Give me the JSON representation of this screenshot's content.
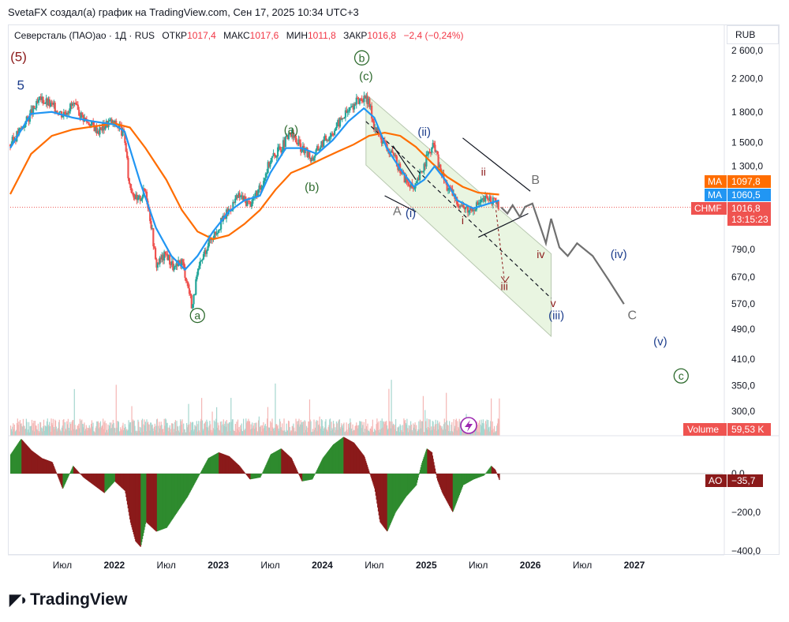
{
  "caption": "SvetaFX создал(а) график на TradingView.com, Сен 17, 2025 10:34 UTC+3",
  "legend": {
    "symbol": "Северсталь (ПАО)ао · 1Д · RUS",
    "open_label": "ОТКР",
    "open": "1017,4",
    "high_label": "МАКС",
    "high": "1017,6",
    "low_label": "МИН",
    "low": "1011,8",
    "close_label": "ЗАКР",
    "close": "1016,8",
    "change": "−2,4 (−0,24%)"
  },
  "currency": "RUB",
  "badges": {
    "ma1_label": "MA",
    "ma1_value": "1097,8",
    "ma2_label": "MA",
    "ma2_value": "1060,5",
    "ticker_label": "CHMF",
    "ticker_value": "1016,8",
    "countdown": "13:15:23",
    "volume_label": "Volume",
    "volume_value": "59,53 K",
    "ao_label": "AO",
    "ao_value": "−35,7"
  },
  "logo_text": "TradingView",
  "colors": {
    "ma_fast": "#2196f3",
    "ma_slow": "#ff6d00",
    "up": "#26a69a",
    "down": "#ef5350",
    "ao_up": "#2e8b2e",
    "ao_down": "#8b1a1a",
    "channel_fill": "#e9f5e1",
    "projection": "#707070"
  },
  "chart_data": {
    "type": "candlestick",
    "price_axis": {
      "scale": "log",
      "ticks": [
        "2 600,0",
        "2 200,0",
        "1 800,0",
        "1 500,0",
        "1 300,0",
        "790,0",
        "670,0",
        "570,0",
        "490,0",
        "410,0",
        "350,0",
        "300,0"
      ],
      "tick_values": [
        2600,
        2200,
        1800,
        1500,
        1300,
        790,
        670,
        570,
        490,
        410,
        350,
        300
      ]
    },
    "time_axis": {
      "labels": [
        "Июл",
        "2022",
        "Июл",
        "2023",
        "Июл",
        "2024",
        "Июл",
        "2025",
        "Июл",
        "2026",
        "Июл",
        "2027"
      ],
      "label_dates": [
        2021.5,
        2022.0,
        2022.5,
        2023.0,
        2023.5,
        2024.0,
        2024.5,
        2025.0,
        2025.5,
        2026.0,
        2026.5,
        2027.0
      ]
    },
    "ao_axis": {
      "ticks": [
        "0,0",
        "−200,0",
        "−400,0"
      ],
      "tick_values": [
        0,
        -200,
        -400
      ]
    },
    "price_path": [
      [
        2021.0,
        1480
      ],
      [
        2021.12,
        1650
      ],
      [
        2021.3,
        1950
      ],
      [
        2021.42,
        1850
      ],
      [
        2021.5,
        1780
      ],
      [
        2021.6,
        1880
      ],
      [
        2021.72,
        1720
      ],
      [
        2021.85,
        1610
      ],
      [
        2021.95,
        1700
      ],
      [
        2022.05,
        1650
      ],
      [
        2022.1,
        1540
      ],
      [
        2022.14,
        1180
      ],
      [
        2022.22,
        1050
      ],
      [
        2022.3,
        1130
      ],
      [
        2022.36,
        900
      ],
      [
        2022.4,
        720
      ],
      [
        2022.5,
        770
      ],
      [
        2022.58,
        700
      ],
      [
        2022.65,
        740
      ],
      [
        2022.72,
        615
      ],
      [
        2022.75,
        560
      ],
      [
        2022.8,
        680
      ],
      [
        2022.9,
        820
      ],
      [
        2023.0,
        900
      ],
      [
        2023.1,
        1000
      ],
      [
        2023.2,
        1090
      ],
      [
        2023.3,
        1040
      ],
      [
        2023.4,
        1130
      ],
      [
        2023.5,
        1350
      ],
      [
        2023.6,
        1450
      ],
      [
        2023.7,
        1580
      ],
      [
        2023.8,
        1450
      ],
      [
        2023.9,
        1360
      ],
      [
        2024.0,
        1500
      ],
      [
        2024.1,
        1600
      ],
      [
        2024.2,
        1750
      ],
      [
        2024.3,
        1880
      ],
      [
        2024.38,
        1960
      ],
      [
        2024.45,
        1900
      ],
      [
        2024.5,
        1650
      ],
      [
        2024.6,
        1480
      ],
      [
        2024.7,
        1350
      ],
      [
        2024.8,
        1200
      ],
      [
        2024.88,
        1120
      ],
      [
        2024.95,
        1250
      ],
      [
        2025.02,
        1400
      ],
      [
        2025.08,
        1480
      ],
      [
        2025.12,
        1300
      ],
      [
        2025.2,
        1150
      ],
      [
        2025.3,
        1050
      ],
      [
        2025.4,
        1000
      ],
      [
        2025.5,
        1040
      ],
      [
        2025.6,
        1080
      ],
      [
        2025.7,
        1016.8
      ]
    ],
    "ma_fast": [
      [
        2021.0,
        1450
      ],
      [
        2021.2,
        1780
      ],
      [
        2021.4,
        1800
      ],
      [
        2021.6,
        1740
      ],
      [
        2021.8,
        1700
      ],
      [
        2022.0,
        1670
      ],
      [
        2022.1,
        1600
      ],
      [
        2022.25,
        1180
      ],
      [
        2022.4,
        900
      ],
      [
        2022.55,
        760
      ],
      [
        2022.68,
        700
      ],
      [
        2022.8,
        760
      ],
      [
        2022.95,
        880
      ],
      [
        2023.1,
        990
      ],
      [
        2023.25,
        1060
      ],
      [
        2023.4,
        1090
      ],
      [
        2023.5,
        1250
      ],
      [
        2023.65,
        1450
      ],
      [
        2023.8,
        1450
      ],
      [
        2023.95,
        1400
      ],
      [
        2024.1,
        1520
      ],
      [
        2024.25,
        1700
      ],
      [
        2024.4,
        1840
      ],
      [
        2024.5,
        1740
      ],
      [
        2024.62,
        1450
      ],
      [
        2024.75,
        1280
      ],
      [
        2024.88,
        1150
      ],
      [
        2024.98,
        1200
      ],
      [
        2025.08,
        1300
      ],
      [
        2025.18,
        1200
      ],
      [
        2025.3,
        1060
      ],
      [
        2025.45,
        1010
      ],
      [
        2025.6,
        1040
      ],
      [
        2025.7,
        1060.5
      ]
    ],
    "ma_slow": [
      [
        2021.0,
        1100
      ],
      [
        2021.2,
        1400
      ],
      [
        2021.4,
        1560
      ],
      [
        2021.6,
        1620
      ],
      [
        2021.8,
        1650
      ],
      [
        2022.0,
        1680
      ],
      [
        2022.15,
        1640
      ],
      [
        2022.3,
        1450
      ],
      [
        2022.5,
        1200
      ],
      [
        2022.65,
        1000
      ],
      [
        2022.8,
        880
      ],
      [
        2022.95,
        840
      ],
      [
        2023.1,
        860
      ],
      [
        2023.25,
        920
      ],
      [
        2023.4,
        1000
      ],
      [
        2023.55,
        1130
      ],
      [
        2023.7,
        1250
      ],
      [
        2023.85,
        1300
      ],
      [
        2024.0,
        1360
      ],
      [
        2024.15,
        1420
      ],
      [
        2024.3,
        1480
      ],
      [
        2024.45,
        1560
      ],
      [
        2024.6,
        1590
      ],
      [
        2024.75,
        1560
      ],
      [
        2024.9,
        1460
      ],
      [
        2025.05,
        1330
      ],
      [
        2025.2,
        1220
      ],
      [
        2025.35,
        1150
      ],
      [
        2025.5,
        1110
      ],
      [
        2025.7,
        1097.8
      ]
    ],
    "projection_path": [
      [
        2025.72,
        1016.8
      ],
      [
        2025.78,
        980
      ],
      [
        2025.83,
        1030
      ],
      [
        2025.9,
        960
      ],
      [
        2025.95,
        1020
      ],
      [
        2026.02,
        1040
      ],
      [
        2026.1,
        900
      ],
      [
        2026.15,
        820
      ],
      [
        2026.2,
        950
      ],
      [
        2026.28,
        800
      ],
      [
        2026.36,
        760
      ],
      [
        2026.45,
        820
      ],
      [
        2026.6,
        760
      ],
      [
        2026.75,
        660
      ],
      [
        2026.9,
        570
      ]
    ],
    "ao": [
      [
        2021.0,
        100
      ],
      [
        2021.1,
        180
      ],
      [
        2021.2,
        120
      ],
      [
        2021.3,
        80
      ],
      [
        2021.4,
        60
      ],
      [
        2021.5,
        -80
      ],
      [
        2021.6,
        40
      ],
      [
        2021.7,
        -20
      ],
      [
        2021.8,
        -60
      ],
      [
        2021.9,
        -100
      ],
      [
        2022.0,
        -40
      ],
      [
        2022.1,
        -90
      ],
      [
        2022.15,
        -250
      ],
      [
        2022.2,
        -350
      ],
      [
        2022.25,
        -380
      ],
      [
        2022.3,
        -250
      ],
      [
        2022.4,
        -300
      ],
      [
        2022.5,
        -280
      ],
      [
        2022.6,
        -200
      ],
      [
        2022.7,
        -120
      ],
      [
        2022.8,
        -20
      ],
      [
        2022.9,
        80
      ],
      [
        2023.0,
        110
      ],
      [
        2023.1,
        90
      ],
      [
        2023.2,
        40
      ],
      [
        2023.3,
        -30
      ],
      [
        2023.4,
        -20
      ],
      [
        2023.5,
        100
      ],
      [
        2023.6,
        130
      ],
      [
        2023.7,
        80
      ],
      [
        2023.8,
        -40
      ],
      [
        2023.9,
        -30
      ],
      [
        2024.0,
        80
      ],
      [
        2024.1,
        150
      ],
      [
        2024.2,
        190
      ],
      [
        2024.3,
        160
      ],
      [
        2024.4,
        90
      ],
      [
        2024.5,
        -80
      ],
      [
        2024.55,
        -250
      ],
      [
        2024.62,
        -300
      ],
      [
        2024.7,
        -200
      ],
      [
        2024.8,
        -120
      ],
      [
        2024.9,
        -60
      ],
      [
        2024.95,
        50
      ],
      [
        2025.0,
        130
      ],
      [
        2025.05,
        110
      ],
      [
        2025.1,
        -30
      ],
      [
        2025.15,
        -100
      ],
      [
        2025.2,
        -150
      ],
      [
        2025.25,
        -200
      ],
      [
        2025.35,
        -60
      ],
      [
        2025.45,
        -30
      ],
      [
        2025.55,
        -10
      ],
      [
        2025.62,
        40
      ],
      [
        2025.66,
        20
      ],
      [
        2025.7,
        -35.7
      ]
    ],
    "volume_series": "bars"
  },
  "annotations": [
    {
      "text": "(5)",
      "color": "#8b1a1a",
      "date": 2021.08,
      "price": 2440,
      "size": 17
    },
    {
      "text": "5",
      "color": "#1c3d8c",
      "date": 2021.1,
      "price": 2060,
      "size": 17
    },
    {
      "text": "(c)",
      "color": "#2e6b2e",
      "date": 2024.42,
      "price": 2180,
      "size": 15
    },
    {
      "text": "(a)",
      "color": "#2e6b2e",
      "date": 2023.7,
      "price": 1580,
      "size": 15
    },
    {
      "text": "(b)",
      "color": "#2e6b2e",
      "date": 2023.9,
      "price": 1120,
      "size": 15
    },
    {
      "text": "(ii)",
      "color": "#1c3d8c",
      "date": 2024.98,
      "price": 1560,
      "size": 15
    },
    {
      "text": "ii",
      "color": "#8b1a1a",
      "date": 2025.55,
      "price": 1230,
      "size": 14
    },
    {
      "text": "B",
      "color": "#707070",
      "date": 2026.05,
      "price": 1170,
      "size": 16
    },
    {
      "text": "A",
      "color": "#707070",
      "date": 2024.72,
      "price": 970,
      "size": 16
    },
    {
      "text": "(i)",
      "color": "#1c3d8c",
      "date": 2024.85,
      "price": 960,
      "size": 15
    },
    {
      "text": "i",
      "color": "#8b1a1a",
      "date": 2025.35,
      "price": 920,
      "size": 14
    },
    {
      "text": "iv",
      "color": "#8b1a1a",
      "date": 2026.1,
      "price": 750,
      "size": 14
    },
    {
      "text": "(iv)",
      "color": "#1c3d8c",
      "date": 2026.85,
      "price": 750,
      "size": 15
    },
    {
      "text": "iii",
      "color": "#8b1a1a",
      "date": 2025.75,
      "price": 620,
      "size": 14
    },
    {
      "text": "v",
      "color": "#8b1a1a",
      "date": 2026.22,
      "price": 560,
      "size": 14
    },
    {
      "text": "(iii)",
      "color": "#1c3d8c",
      "date": 2026.25,
      "price": 520,
      "size": 15
    },
    {
      "text": "C",
      "color": "#707070",
      "date": 2026.98,
      "price": 520,
      "size": 16
    },
    {
      "text": "(v)",
      "color": "#1c3d8c",
      "date": 2027.25,
      "price": 445,
      "size": 15
    }
  ],
  "circled_labels": [
    {
      "text": "b",
      "color": "#2e6b2e",
      "date": 2024.38,
      "price": 2430
    },
    {
      "text": "a",
      "color": "#2e6b2e",
      "date": 2022.8,
      "price": 520
    },
    {
      "text": "c",
      "color": "#2e6b2e",
      "date": 2027.45,
      "price": 362
    }
  ]
}
